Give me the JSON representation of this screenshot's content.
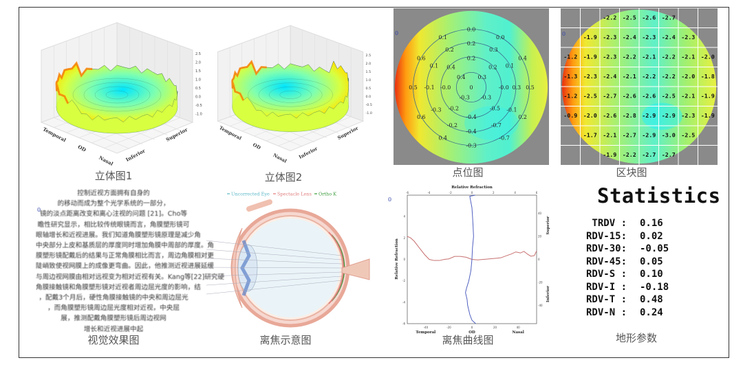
{
  "captions": {
    "stereo1": "立体图1",
    "stereo2": "立体图2",
    "point_map": "点位图",
    "block_map": "区块图",
    "visual_effect": "视觉效果图",
    "defocus_diagram": "离焦示意图",
    "defocus_curve": "离焦曲线图",
    "topo_params": "地形参数"
  },
  "marker": "0",
  "stereo_plot": {
    "axis_labels": {
      "temporal": "Temporal",
      "od": "OD",
      "nasal": "Nasal",
      "inferior": "Inferior",
      "superior": "Superior"
    },
    "z_ticks": [
      "2.5",
      "2.0",
      "1.5",
      "1.0",
      "0.5",
      "0.0",
      "-0.5",
      "-1.0"
    ],
    "colormap": [
      "#00e5ff",
      "#7fffb0",
      "#d8ff40",
      "#ffe000",
      "#ff8000",
      "#e02000"
    ]
  },
  "point_map": {
    "values": [
      "0.0",
      "0.1",
      "0.0",
      "0.2",
      "0.2",
      "0.3",
      "0.6",
      "0.2",
      "0.4",
      "0.1",
      "0.4",
      "0.2",
      "0.1",
      "0.4",
      "0.3",
      "0.5",
      "-0.1",
      "-0.0",
      "0",
      "-0.0",
      "0.3",
      "0.5",
      "-0.3",
      "-0.3",
      "-0.3",
      "-0.2",
      "-0.5",
      "-0.1",
      "-0.4",
      "0.6",
      "0.2",
      "-0.2",
      "-0.7",
      "-0.4",
      "0.4",
      "-0.7",
      "-0.3"
    ]
  },
  "block_map": {
    "rows": [
      [
        null,
        null,
        "-2.2",
        "-2.5",
        "-2.6",
        "-2.7",
        null,
        null
      ],
      [
        null,
        "-1.9",
        "-2.3",
        "-2.4",
        "-2.3",
        "-2.4",
        "-2.3",
        null
      ],
      [
        "-1.2",
        "-1.9",
        "-2.3",
        "-2.2",
        "-2.1",
        "-2.2",
        "-2.1",
        "-2.0"
      ],
      [
        "-1.3",
        "-2.3",
        "-2.4",
        "-2.1",
        "-2.2",
        "-2.2",
        "-2.0",
        "-1.8"
      ],
      [
        "-1.2",
        "-2.5",
        "-2.7",
        "-2.6",
        "-2.6",
        "-2.5",
        "-2.1",
        "-1.9"
      ],
      [
        "-0.9",
        "-2.0",
        "-2.6",
        "-2.8",
        "-2.9",
        "-2.9",
        "-2.3",
        "-1.9"
      ],
      [
        null,
        "-1.7",
        "-2.1",
        "-2.7",
        "-2.9",
        "-3.0",
        "-2.5",
        null
      ],
      [
        null,
        null,
        "-1.9",
        "-2.2",
        "-2.7",
        "-2.7",
        null,
        null
      ]
    ]
  },
  "visual_effect_text": [
    "控制近视方面拥有自身的",
    "的移动而成为整个光学系统的一部分，",
    "镜的淡点距离改变和离心注视的问题 [21]。Cho等",
    "瞻性研究显示，相比较传统眼镜而言，角膜塑形镜可",
    "眼轴增长和近视进展。我们知道角膜塑形镜原理是减少角",
    "中央部分上皮和基质层的厚度同时增加角膜中周部的厚度。角",
    "膜塑形镜配戴后的结果与正常角膜相比而言，周边角膜相对更",
    "陡峭致使视网膜上的成像更弯曲。因此，他推测近视进展延缓",
    "与周边视网膜由相对远视变为相对近视有关。Kang等[22]研究硬",
    "角膜接触镜和角膜塑形镜对近视者周边屈光度的影响，结",
    "，配戴3个月后，硬性角膜接触镜的中央和周边屈光",
    "，而角膜塑形镜周边屈光度相对近视，中央屈",
    "展，推测配戴角膜塑形镜后周边视网",
    "增长和近视进展中起"
  ],
  "defocus_diagram": {
    "legend": [
      {
        "label": "Uncorrected Eye",
        "color": "#5bb8c8"
      },
      {
        "label": "Spectacle Lens",
        "color": "#e07a7a"
      },
      {
        "label": "Ortho K",
        "color": "#3a9a3a"
      }
    ]
  },
  "chart_data": {
    "type": "line",
    "title": "Relative Refraction",
    "xlabel_left": "Temporal",
    "xlabel_center": "OD",
    "xlabel_right": "Nasal",
    "ylabel_left": "Relative Refraction",
    "ylabel_right_top": "Superior",
    "ylabel_right_bottom": "Inferior",
    "bottom_ticks": [
      "-40",
      "-20",
      "0",
      "20",
      "40"
    ],
    "top_ticks": [
      "-6",
      "-4",
      "-2",
      "0",
      "2",
      "4",
      "6"
    ],
    "left_ticks": [
      "4",
      "2",
      "0",
      "-2",
      "-4",
      "-6"
    ],
    "right_ticks": [
      "40",
      "20",
      "0",
      "-20",
      "-40"
    ],
    "xlim": [
      -56,
      56
    ],
    "ylim": [
      -6,
      6
    ],
    "series": [
      {
        "color": "#c87070",
        "x": [
          -56,
          -53,
          -50,
          -45,
          -41,
          -37,
          -33,
          -28,
          -24,
          -20,
          -15,
          -10,
          -5,
          0,
          5,
          10,
          15,
          20,
          25,
          30,
          34,
          38,
          42,
          45,
          48,
          51,
          54,
          56
        ],
        "y": [
          2.15,
          2.0,
          1.7,
          1.0,
          0.45,
          0.0,
          -0.1,
          -0.1,
          0.0,
          0.05,
          0.28,
          0.28,
          0.2,
          0.0,
          -0.05,
          0.0,
          0.05,
          0.1,
          0.15,
          0.35,
          0.5,
          0.7,
          0.6,
          0.75,
          0.5,
          0.3,
          0.35,
          0.8
        ]
      },
      {
        "color": "#5060c0",
        "refraction": [
          0.3,
          -0.2,
          0.0,
          0.05,
          0.1,
          0.15,
          0.05,
          0.0,
          -0.1,
          -0.3,
          -0.5,
          -0.6,
          -0.45,
          -0.4,
          -0.2,
          0.0,
          0.35
        ],
        "meridian_deg": [
          56,
          55,
          45,
          38,
          30,
          20,
          10,
          0,
          -10,
          -19,
          -25,
          -29,
          -35,
          -40,
          -48,
          -53,
          -56
        ]
      }
    ]
  },
  "statistics": {
    "title": "Statistics",
    "rows": [
      {
        "key": " TRDV :",
        "value": "0.16"
      },
      {
        "key": "RDV-15:",
        "value": "0.02"
      },
      {
        "key": "RDV-30:",
        "value": "-0.05"
      },
      {
        "key": "RDV-45:",
        "value": "0.05"
      },
      {
        "key": "RDV-S :",
        "value": "0.10"
      },
      {
        "key": "RDV-I :",
        "value": "-0.18"
      },
      {
        "key": "RDV-T :",
        "value": "0.48"
      },
      {
        "key": "RDV-N :",
        "value": "0.24"
      }
    ]
  }
}
